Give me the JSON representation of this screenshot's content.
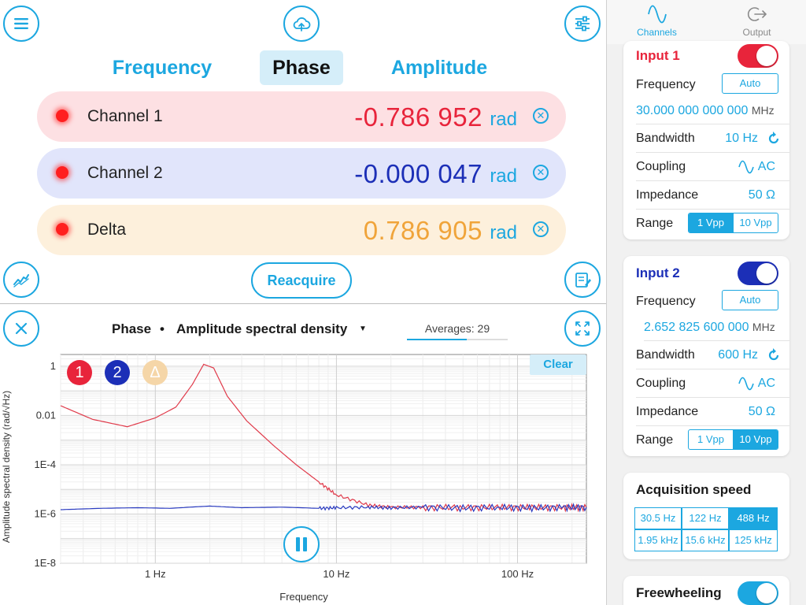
{
  "toolbar": {
    "menu_icon": "hamburger-menu-icon",
    "upload_icon": "cloud-upload-icon",
    "settings_icon": "sliders-icon"
  },
  "mode_tabs": [
    {
      "label": "Frequency",
      "active": false
    },
    {
      "label": "Phase",
      "active": true
    },
    {
      "label": "Amplitude",
      "active": false
    }
  ],
  "measurements": [
    {
      "name": "Channel 1",
      "value": "-0.786 952",
      "unit": "rad",
      "color": "#e8243b",
      "bg": "#fde0e3"
    },
    {
      "name": "Channel 2",
      "value": "-0.000 047",
      "unit": "rad",
      "color": "#1c2fb7",
      "bg": "#e1e5fb"
    },
    {
      "name": "Delta",
      "value": "0.786 905",
      "unit": "rad",
      "color": "#f0a43a",
      "bg": "#fdf0dc"
    }
  ],
  "reacquire_label": "Reacquire",
  "plot": {
    "mode": "Phase",
    "separator": "•",
    "type": "Amplitude spectral density",
    "averages_label": "Averages: 29",
    "averages_fraction": 0.59,
    "clear_label": "Clear",
    "badges": [
      {
        "label": "1",
        "color": "#e8243b"
      },
      {
        "label": "2",
        "color": "#1c2fb7"
      },
      {
        "label": "Δ",
        "color": "#f5d6a8"
      }
    ]
  },
  "chart_data": {
    "type": "line",
    "title": "",
    "xlabel": "Frequency",
    "ylabel": "Amplitude spectral density (rad/√Hz)",
    "x_scale": "log",
    "y_scale": "log",
    "xlim": [
      0.3,
      240
    ],
    "ylim": [
      1e-08,
      3
    ],
    "x_ticks": [
      {
        "value": 1,
        "label": "1 Hz"
      },
      {
        "value": 10,
        "label": "10 Hz"
      },
      {
        "value": 100,
        "label": "100 Hz"
      }
    ],
    "y_ticks": [
      {
        "value": 1,
        "label": "1"
      },
      {
        "value": 0.01,
        "label": "0.01"
      },
      {
        "value": 0.0001,
        "label": "1E-4"
      },
      {
        "value": 1e-06,
        "label": "1E-6"
      },
      {
        "value": 1e-08,
        "label": "1E-8"
      }
    ],
    "grid": true,
    "series": [
      {
        "name": "1",
        "color": "#e03a4a",
        "x": [
          0.3,
          0.45,
          0.7,
          1.0,
          1.3,
          1.6,
          1.85,
          2.1,
          2.5,
          3.2,
          4.5,
          6,
          8,
          10,
          15,
          20,
          30,
          50,
          80,
          120,
          180,
          240
        ],
        "y": [
          0.025,
          0.007,
          0.0035,
          0.008,
          0.022,
          0.18,
          1.2,
          0.85,
          0.06,
          0.006,
          0.0006,
          0.0001,
          2e-05,
          6e-06,
          2.3e-06,
          1.9e-06,
          1.9e-06,
          1.9e-06,
          1.9e-06,
          1.9e-06,
          1.9e-06,
          1.9e-06
        ]
      },
      {
        "name": "2",
        "color": "#2a3bc0",
        "x": [
          0.3,
          0.5,
          0.8,
          1.2,
          2,
          3,
          5,
          8,
          10,
          15,
          20,
          30,
          50,
          80,
          120,
          180,
          240
        ],
        "y": [
          1.5e-06,
          1.7e-06,
          1.8e-06,
          1.7e-06,
          2.1e-06,
          1.8e-06,
          1.9e-06,
          1.7e-06,
          1.8e-06,
          1.9e-06,
          1.8e-06,
          1.9e-06,
          1.8e-06,
          1.9e-06,
          1.8e-06,
          1.9e-06,
          1.9e-06
        ]
      }
    ]
  },
  "right_tabs": [
    {
      "label": "Channels",
      "icon": "sine-wave-icon",
      "active": true
    },
    {
      "label": "Output",
      "icon": "output-arrow-icon",
      "active": false
    }
  ],
  "input1": {
    "title": "Input 1",
    "title_color": "#e8243b",
    "toggle_on": true,
    "toggle_color": "#e8243b",
    "frequency_label": "Frequency",
    "frequency_mode": "Auto",
    "frequency_value": "30.000 000 000 000",
    "frequency_unit": "MHz",
    "bandwidth_label": "Bandwidth",
    "bandwidth_value": "10 Hz",
    "coupling_label": "Coupling",
    "coupling_value": "AC",
    "impedance_label": "Impedance",
    "impedance_value": "50 Ω",
    "range_label": "Range",
    "range_options": [
      "1 Vpp",
      "10 Vpp"
    ],
    "range_selected": "1 Vpp"
  },
  "input2": {
    "title": "Input 2",
    "title_color": "#1c2fb7",
    "toggle_on": true,
    "toggle_color": "#1c2fb7",
    "frequency_label": "Frequency",
    "frequency_mode": "Auto",
    "frequency_value": "2.652 825 600 000",
    "frequency_unit": "MHz",
    "bandwidth_label": "Bandwidth",
    "bandwidth_value": "600 Hz",
    "coupling_label": "Coupling",
    "coupling_value": "AC",
    "impedance_label": "Impedance",
    "impedance_value": "50 Ω",
    "range_label": "Range",
    "range_options": [
      "1 Vpp",
      "10 Vpp"
    ],
    "range_selected": "10 Vpp"
  },
  "acquisition": {
    "title": "Acquisition speed",
    "options": [
      "30.5 Hz",
      "122 Hz",
      "488 Hz",
      "1.95 kHz",
      "15.6 kHz",
      "125 kHz"
    ],
    "selected": "488 Hz"
  },
  "freewheeling": {
    "label": "Freewheeling",
    "toggle_on": true
  },
  "accent_color": "#1ca7e0"
}
